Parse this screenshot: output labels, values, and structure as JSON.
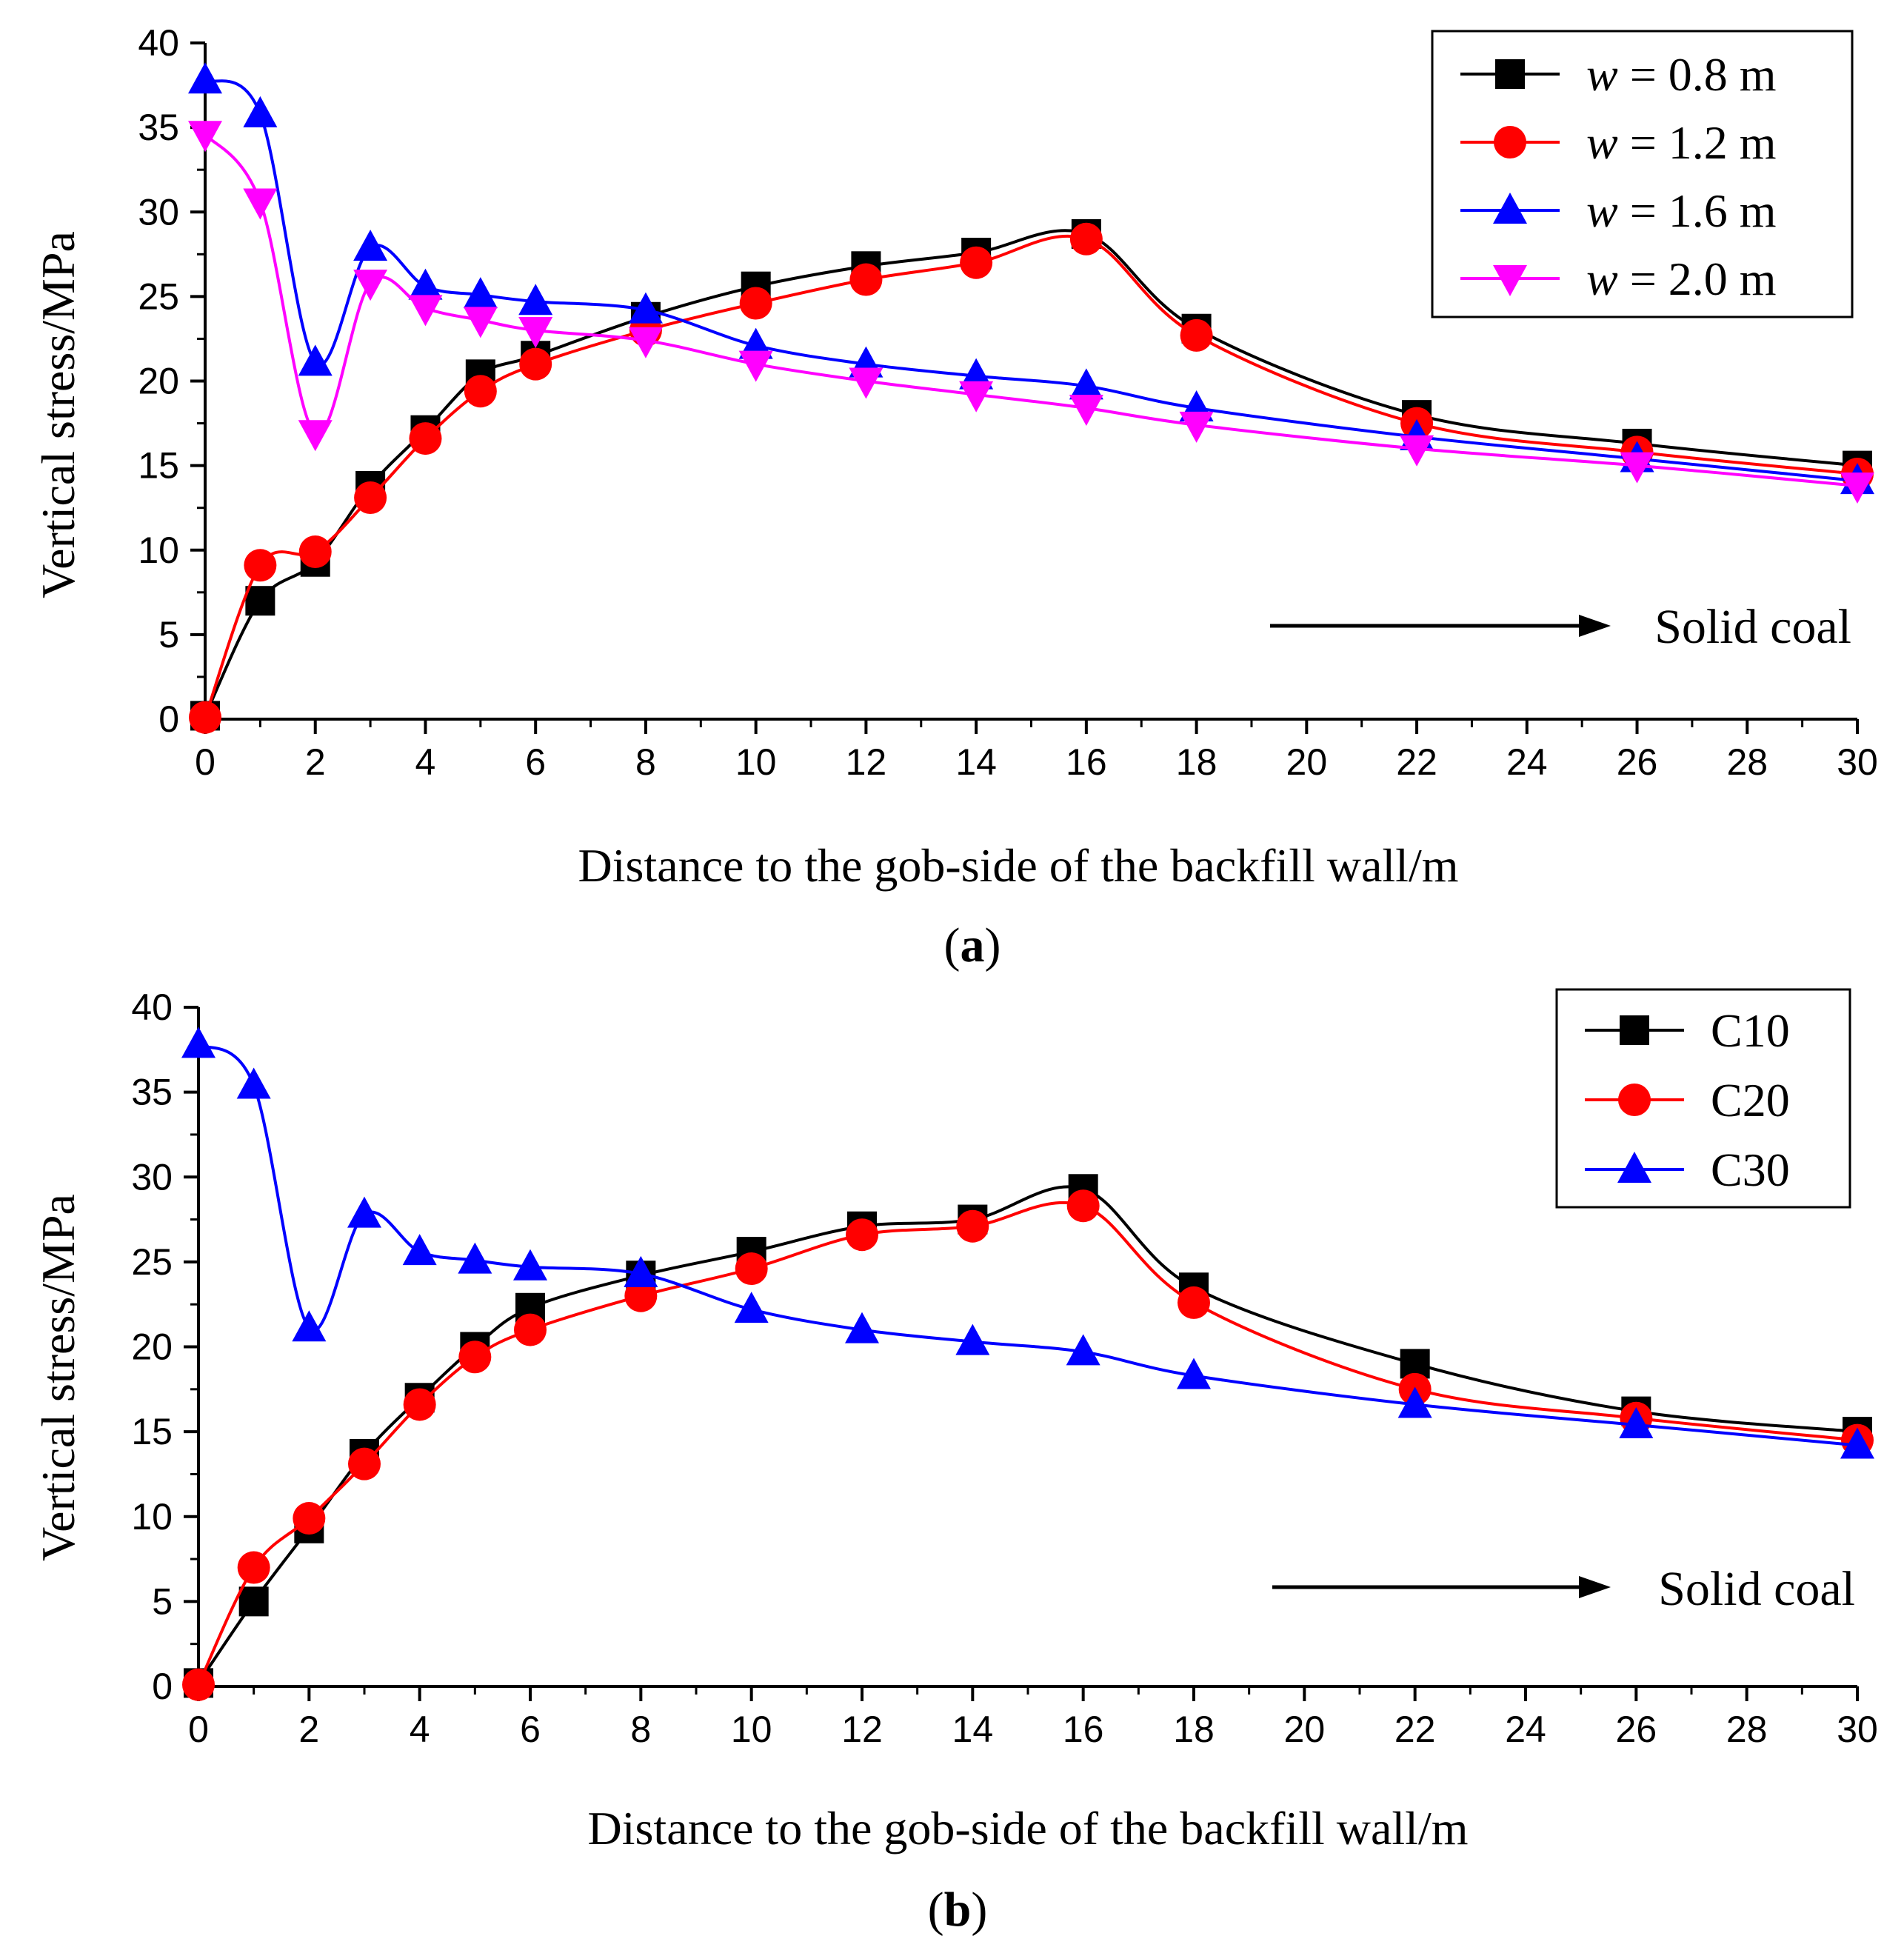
{
  "chart_data": [
    {
      "type": "line",
      "panel_label": "a",
      "xlabel": "Distance to the gob-side of the backfill wall/m",
      "ylabel": "Vertical stress/MPa",
      "xlim": [
        0,
        30
      ],
      "ylim": [
        0,
        40
      ],
      "xticks": [
        0,
        2,
        4,
        6,
        8,
        10,
        12,
        14,
        16,
        18,
        20,
        22,
        24,
        26,
        28,
        30
      ],
      "yticks": [
        0,
        5,
        10,
        15,
        20,
        25,
        30,
        35,
        40
      ],
      "legend_position": "top-right",
      "annotation": "Solid coal",
      "series": [
        {
          "name": "w = 0.8 m",
          "legend_var": "w",
          "legend_rest": " = 0.8 m",
          "color": "#000000",
          "marker": "square",
          "x": [
            0,
            1,
            2,
            3,
            4,
            5,
            6,
            8,
            10,
            12,
            14,
            16,
            18,
            22,
            26,
            30
          ],
          "y": [
            0.2,
            7.0,
            9.3,
            13.8,
            17.1,
            20.4,
            21.5,
            23.8,
            25.6,
            26.8,
            27.6,
            28.7,
            23.1,
            18.0,
            16.3,
            15.0
          ]
        },
        {
          "name": "w = 1.2 m",
          "legend_var": "w",
          "legend_rest": " = 1.2 m",
          "color": "#ff0000",
          "marker": "circle",
          "x": [
            0,
            1,
            2,
            3,
            4,
            5,
            6,
            8,
            10,
            12,
            14,
            16,
            18,
            22,
            26,
            30
          ],
          "y": [
            0.1,
            9.1,
            9.9,
            13.1,
            16.6,
            19.4,
            21.0,
            23.0,
            24.6,
            26.0,
            27.0,
            28.4,
            22.7,
            17.5,
            15.8,
            14.5
          ]
        },
        {
          "name": "w = 1.6 m",
          "legend_var": "w",
          "legend_rest": " = 1.6 m",
          "color": "#0000ff",
          "marker": "triangle-up",
          "x": [
            0,
            1,
            2,
            3,
            4,
            5,
            6,
            8,
            10,
            12,
            14,
            16,
            18,
            22,
            26,
            30
          ],
          "y": [
            37.8,
            35.8,
            21.1,
            27.9,
            25.6,
            25.1,
            24.7,
            24.2,
            22.1,
            21.0,
            20.3,
            19.7,
            18.4,
            16.7,
            15.4,
            14.1
          ]
        },
        {
          "name": "w = 2.0 m",
          "legend_var": "w",
          "legend_rest": " = 2.0 m",
          "color": "#ff00ff",
          "marker": "triangle-down",
          "x": [
            0,
            1,
            2,
            3,
            4,
            5,
            6,
            8,
            10,
            12,
            14,
            16,
            18,
            22,
            26,
            30
          ],
          "y": [
            34.6,
            30.6,
            16.9,
            25.8,
            24.3,
            23.6,
            23.0,
            22.4,
            21.0,
            20.0,
            19.2,
            18.4,
            17.4,
            16.0,
            15.0,
            13.8
          ]
        }
      ]
    },
    {
      "type": "line",
      "panel_label": "b",
      "xlabel": "Distance to the gob-side of the backfill wall/m",
      "ylabel": "Vertical stress/MPa",
      "xlim": [
        0,
        30
      ],
      "ylim": [
        0,
        40
      ],
      "xticks": [
        0,
        2,
        4,
        6,
        8,
        10,
        12,
        14,
        16,
        18,
        20,
        22,
        24,
        26,
        28,
        30
      ],
      "yticks": [
        0,
        5,
        10,
        15,
        20,
        25,
        30,
        35,
        40
      ],
      "legend_position": "top-right",
      "annotation": "Solid coal",
      "series": [
        {
          "name": "C10",
          "legend_var": "",
          "legend_rest": "C10",
          "color": "#000000",
          "marker": "square",
          "x": [
            0,
            1,
            2,
            3,
            4,
            5,
            6,
            8,
            10,
            12,
            14,
            16,
            18,
            22,
            26,
            30
          ],
          "y": [
            0.2,
            5.0,
            9.3,
            13.7,
            17.0,
            20.0,
            22.3,
            24.2,
            25.6,
            27.1,
            27.5,
            29.3,
            23.5,
            19.0,
            16.2,
            15.0
          ]
        },
        {
          "name": "C20",
          "legend_var": "",
          "legend_rest": "C20",
          "color": "#ff0000",
          "marker": "circle",
          "x": [
            0,
            1,
            2,
            3,
            4,
            5,
            6,
            8,
            10,
            12,
            14,
            16,
            18,
            22,
            26,
            30
          ],
          "y": [
            0.1,
            7.0,
            9.9,
            13.1,
            16.6,
            19.4,
            21.0,
            23.0,
            24.6,
            26.6,
            27.1,
            28.3,
            22.6,
            17.5,
            15.8,
            14.5
          ]
        },
        {
          "name": "C30",
          "legend_var": "",
          "legend_rest": "C30",
          "color": "#0000ff",
          "marker": "triangle-up",
          "x": [
            0,
            1,
            2,
            3,
            4,
            5,
            6,
            8,
            10,
            12,
            14,
            16,
            18,
            22,
            26,
            30
          ],
          "y": [
            37.8,
            35.4,
            21.1,
            27.8,
            25.6,
            25.1,
            24.7,
            24.3,
            22.2,
            21.0,
            20.3,
            19.7,
            18.3,
            16.6,
            15.4,
            14.2
          ]
        }
      ]
    }
  ]
}
